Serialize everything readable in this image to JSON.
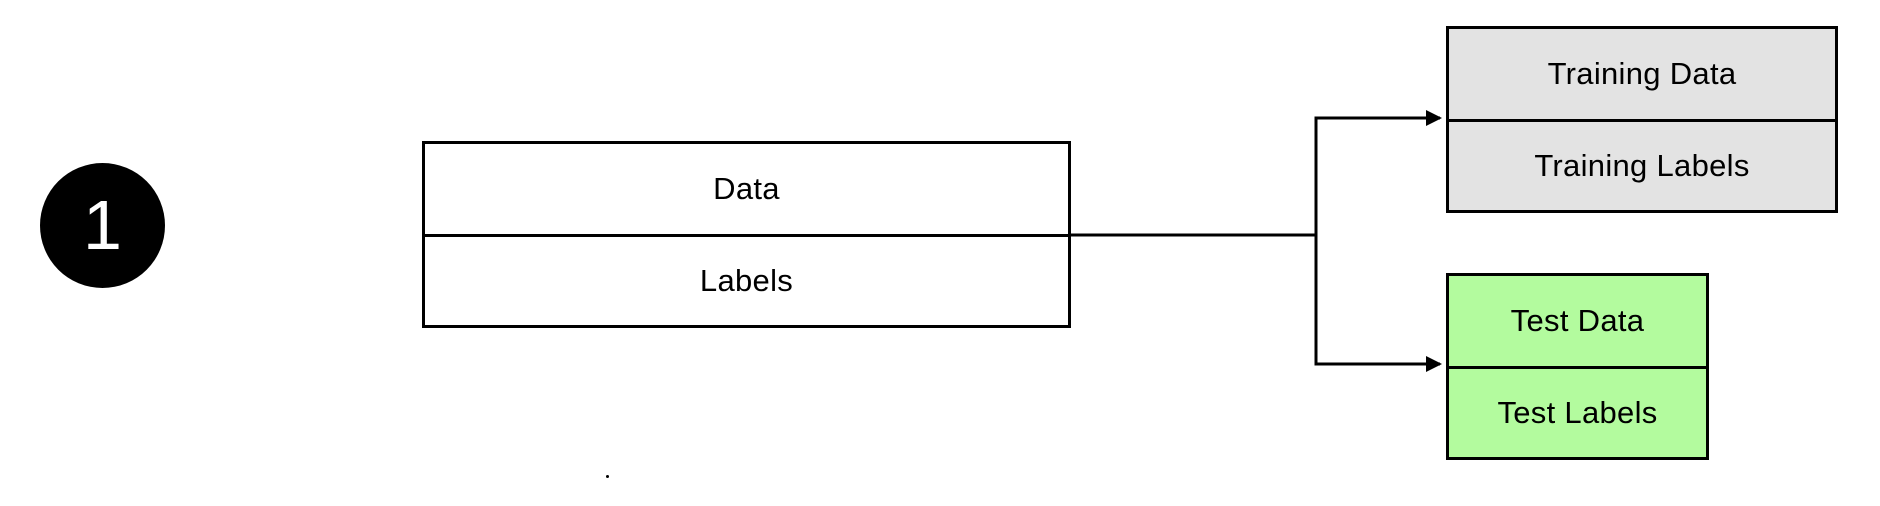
{
  "step": {
    "number": "1"
  },
  "source": {
    "top_label": "Data",
    "bottom_label": "Labels",
    "fill": "#ffffff"
  },
  "training": {
    "top_label": "Training Data",
    "bottom_label": "Training Labels",
    "fill": "#e3e3e3"
  },
  "test": {
    "top_label": "Test Data",
    "bottom_label": "Test Labels",
    "fill": "#b3fb9e"
  },
  "colors": {
    "stroke": "#000000",
    "badge": "#000000"
  }
}
